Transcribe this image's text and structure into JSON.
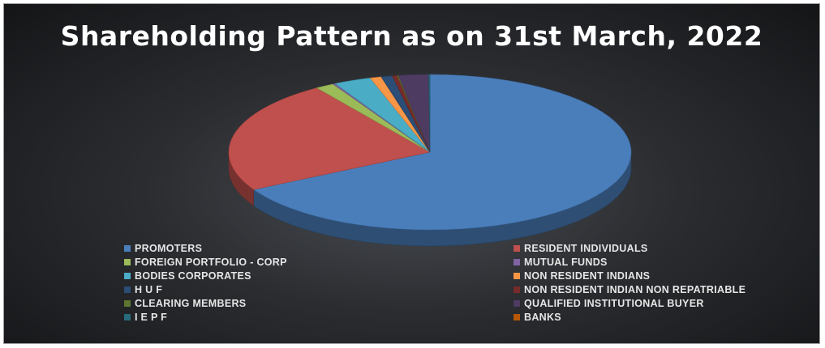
{
  "chart_data": {
    "type": "pie",
    "title": "Shareholding Pattern as on 31st March, 2022",
    "slices": [
      {
        "label": "PROMOTERS",
        "value": 67.0,
        "color": "#4a7ebb"
      },
      {
        "label": "RESIDENT INDIVIDUALS",
        "value": 23.5,
        "color": "#c0504d"
      },
      {
        "label": "FOREIGN PORTFOLIO - CORP",
        "value": 1.5,
        "color": "#9bbb59"
      },
      {
        "label": "MUTUAL FUNDS",
        "value": 0.2,
        "color": "#8064a2"
      },
      {
        "label": "BODIES CORPORATES",
        "value": 3.0,
        "color": "#4bacc6"
      },
      {
        "label": "NON RESIDENT INDIANS",
        "value": 0.9,
        "color": "#f79646"
      },
      {
        "label": "H U F",
        "value": 0.9,
        "color": "#2c4d75"
      },
      {
        "label": "NON RESIDENT INDIAN NON REPATRIABLE",
        "value": 0.4,
        "color": "#772c2a"
      },
      {
        "label": "CLEARING MEMBERS",
        "value": 0.1,
        "color": "#5f7530"
      },
      {
        "label": "QUALIFIED INSTITUTIONAL BUYER",
        "value": 2.4,
        "color": "#4d3b62"
      },
      {
        "label": "I E P F",
        "value": 0.1,
        "color": "#276a7c"
      },
      {
        "label": "BANKS",
        "value": 0.0,
        "color": "#b65708"
      }
    ],
    "legend_placement": "bottom"
  }
}
